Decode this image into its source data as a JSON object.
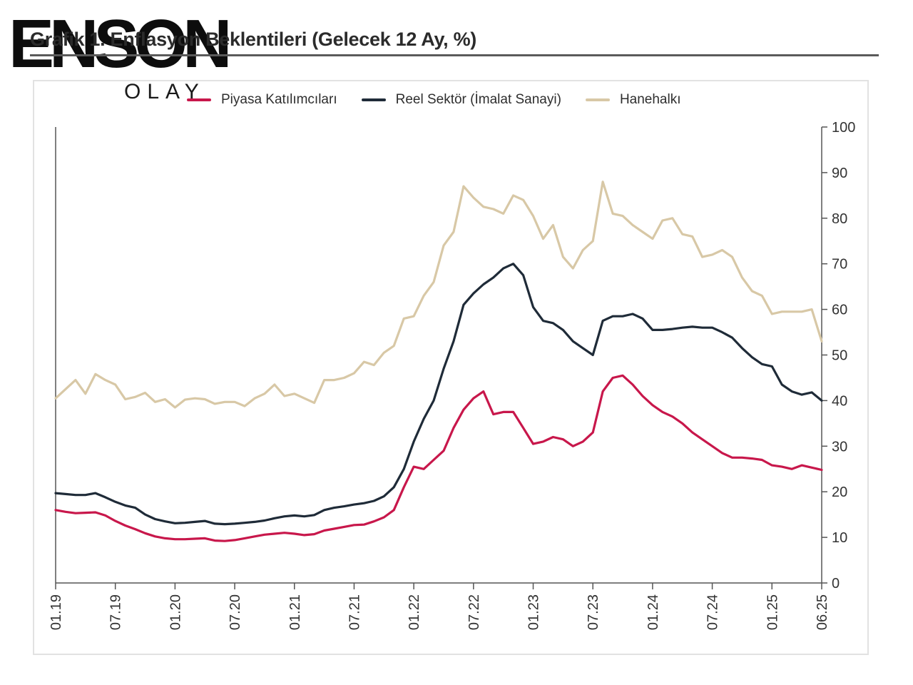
{
  "title": "Grafik 1. Enflasyon Beklentileri (Gelecek 12 Ay, %)",
  "logo": {
    "main": "ENSON",
    "sub": "OLAY"
  },
  "colors": {
    "piyasa": "#c8174b",
    "reel": "#1f2b38",
    "hanehalki": "#d8c8a6",
    "axis": "#555555"
  },
  "chart_data": {
    "type": "line",
    "title": "Grafik 1. Enflasyon Beklentileri (Gelecek 12 Ay, %)",
    "ylim": [
      0,
      100
    ],
    "yticks": [
      0,
      10,
      20,
      30,
      40,
      50,
      60,
      70,
      80,
      90,
      100
    ],
    "xtick_labels": [
      "01.19",
      "07.19",
      "01.20",
      "07.20",
      "01.21",
      "07.21",
      "01.22",
      "07.22",
      "01.23",
      "07.23",
      "01.24",
      "07.24",
      "01.25",
      "06.25"
    ],
    "xtick_index": [
      0,
      6,
      12,
      18,
      24,
      30,
      36,
      42,
      48,
      54,
      60,
      66,
      72,
      77
    ],
    "grid": false,
    "legend_position": "top",
    "series": [
      {
        "name": "Piyasa Katılımcıları",
        "values": [
          16.0,
          15.6,
          15.3,
          15.4,
          15.5,
          14.8,
          13.6,
          12.6,
          11.8,
          10.9,
          10.2,
          9.8,
          9.6,
          9.6,
          9.7,
          9.8,
          9.3,
          9.2,
          9.4,
          9.8,
          10.2,
          10.6,
          10.8,
          11.0,
          10.8,
          10.5,
          10.7,
          11.5,
          11.9,
          12.3,
          12.7,
          12.8,
          13.5,
          14.4,
          16.0,
          21.0,
          25.5,
          25.0,
          27.0,
          29.0,
          34.0,
          38.0,
          40.5,
          42.0,
          37.0,
          37.5,
          37.5,
          34.0,
          30.5,
          31.0,
          32.0,
          31.5,
          30.0,
          31.0,
          33.0,
          42.0,
          45.0,
          45.5,
          43.5,
          41.0,
          39.0,
          37.5,
          36.5,
          35.0,
          33.0,
          31.5,
          30.0,
          28.5,
          27.5,
          27.5,
          27.3,
          27.0,
          25.8,
          25.5,
          25.0,
          25.8,
          25.3,
          24.8
        ]
      },
      {
        "name": "Reel Sektör (İmalat Sanayi)",
        "values": [
          19.7,
          19.5,
          19.3,
          19.3,
          19.7,
          18.8,
          17.8,
          17.0,
          16.5,
          15.0,
          14.0,
          13.5,
          13.1,
          13.2,
          13.4,
          13.6,
          13.0,
          12.9,
          13.0,
          13.2,
          13.4,
          13.7,
          14.2,
          14.6,
          14.8,
          14.6,
          14.9,
          16.0,
          16.5,
          16.8,
          17.2,
          17.5,
          18.0,
          19.0,
          21.0,
          25.0,
          31.0,
          36.0,
          40.0,
          47.0,
          53.0,
          61.0,
          63.5,
          65.5,
          67.0,
          69.0,
          70.0,
          67.5,
          60.5,
          57.5,
          57.0,
          55.5,
          53.0,
          51.5,
          50.0,
          57.5,
          58.5,
          58.5,
          59.0,
          58.0,
          55.5,
          55.5,
          55.7,
          56.0,
          56.2,
          56.0,
          56.0,
          55.0,
          53.8,
          51.5,
          49.5,
          48.0,
          47.5,
          43.5,
          42.0,
          41.3,
          41.8,
          40.0
        ]
      },
      {
        "name": "Hanehalkı",
        "values": [
          40.5,
          42.5,
          44.5,
          41.5,
          45.8,
          44.5,
          43.5,
          40.3,
          40.8,
          41.7,
          39.7,
          40.3,
          38.5,
          40.2,
          40.5,
          40.3,
          39.3,
          39.7,
          39.7,
          38.8,
          40.5,
          41.5,
          43.5,
          41.0,
          41.5,
          40.5,
          39.5,
          44.5,
          44.5,
          45.0,
          46.0,
          48.5,
          47.8,
          50.5,
          52.0,
          58.0,
          58.5,
          63.0,
          66.0,
          74.0,
          77.0,
          87.0,
          84.5,
          82.5,
          82.0,
          81.0,
          85.0,
          84.0,
          80.5,
          75.5,
          78.5,
          71.5,
          69.0,
          73.0,
          75.0,
          88.0,
          81.0,
          80.5,
          78.5,
          77.0,
          75.5,
          79.5,
          80.0,
          76.5,
          76.0,
          71.5,
          72.0,
          73.0,
          71.5,
          67.0,
          64.0,
          63.0,
          59.0,
          59.5,
          59.5,
          59.5,
          60.0,
          53.0
        ]
      }
    ]
  }
}
